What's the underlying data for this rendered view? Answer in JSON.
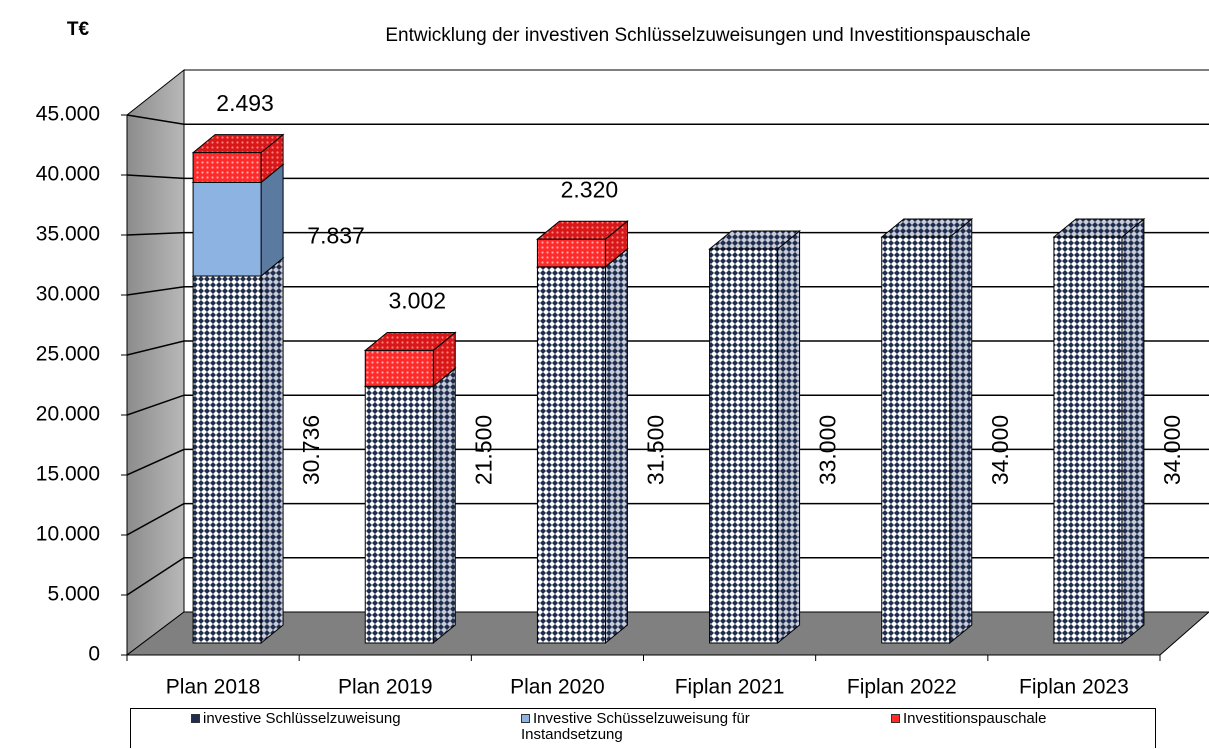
{
  "chart_data": {
    "type": "bar3d_stacked",
    "title": "Entwicklung der investiven Schlüsselzuweisungen und Investitionspauschale",
    "unit_label": "T€",
    "categories": [
      "Plan 2018",
      "Plan 2019",
      "Plan 2020",
      "Fiplan 2021",
      "Fiplan 2022",
      "Fiplan 2023"
    ],
    "series": [
      {
        "name": "investive Schlüsselzuweisung",
        "color": "#1f2d4e",
        "values": [
          30736,
          21500,
          31500,
          33000,
          34000,
          34000
        ],
        "value_labels": [
          "30.736",
          "21.500",
          "31.500",
          "33.000",
          "34.000",
          "34.000"
        ]
      },
      {
        "name": "Investive Schüsselzuweisung für Instandsetzung",
        "color": "#8db3e2",
        "values": [
          7837,
          null,
          null,
          null,
          null,
          null
        ],
        "value_labels": [
          "7.837",
          null,
          null,
          null,
          null,
          null
        ]
      },
      {
        "name": "Investitionspauschale",
        "color": "#ff2a2a",
        "values": [
          2493,
          3002,
          2320,
          null,
          null,
          null
        ],
        "value_labels": [
          "2.493",
          "3.002",
          "2.320",
          null,
          null,
          null
        ]
      }
    ],
    "ylim": [
      0,
      50000
    ],
    "yticks": [
      0,
      {
        "value": 5000,
        "label": "5.000"
      },
      {
        "value": 10000,
        "label": "10.000"
      },
      {
        "value": 15000,
        "label": "15.000"
      },
      {
        "value": 20000,
        "label": "20.000"
      },
      {
        "value": 25000,
        "label": "25.000"
      },
      {
        "value": 30000,
        "label": "30.000"
      },
      {
        "value": 35000,
        "label": "35.000"
      },
      {
        "value": 40000,
        "label": "40.000"
      },
      {
        "value": 45000,
        "label": "45.000"
      }
    ],
    "grid": true
  }
}
